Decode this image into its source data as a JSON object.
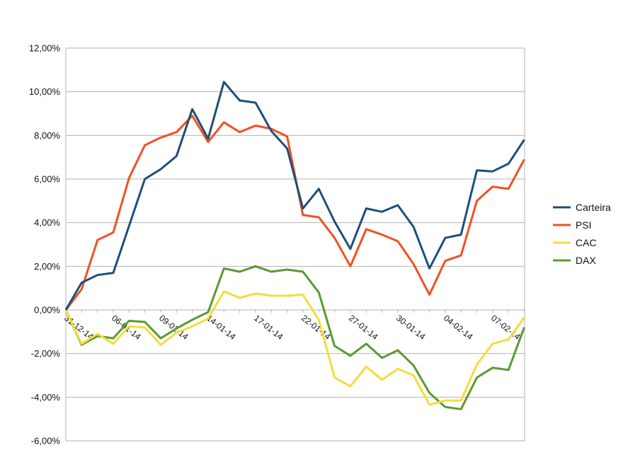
{
  "chart_data": {
    "type": "line",
    "title": "",
    "xlabel": "",
    "ylabel": "",
    "ylim": [
      -6,
      12
    ],
    "y_ticks": [
      "12,00%",
      "10,00%",
      "8,00%",
      "6,00%",
      "4,00%",
      "2,00%",
      "0,00%",
      "-2,00%",
      "-4,00%",
      "-6,00%"
    ],
    "x_tick_labels": [
      {
        "index": 0,
        "label": "31-12-14"
      },
      {
        "index": 3,
        "label": "06-01-14"
      },
      {
        "index": 6,
        "label": "09-01-14"
      },
      {
        "index": 9,
        "label": "14-01-14"
      },
      {
        "index": 12,
        "label": "17-01-14"
      },
      {
        "index": 15,
        "label": "22-01-14"
      },
      {
        "index": 18,
        "label": "27-01-14"
      },
      {
        "index": 21,
        "label": "30-01-14"
      },
      {
        "index": 24,
        "label": "04-02-14"
      },
      {
        "index": 27,
        "label": "07-02-14"
      }
    ],
    "grid": true,
    "legend_position": "right",
    "series": [
      {
        "name": "Carteira",
        "color": "#1f4e79",
        "values": [
          0.0,
          1.25,
          1.6,
          1.7,
          3.85,
          6.0,
          6.45,
          7.05,
          9.2,
          7.85,
          10.45,
          9.6,
          9.5,
          8.2,
          7.4,
          4.65,
          5.55,
          4.05,
          2.8,
          4.65,
          4.5,
          4.8,
          3.8,
          1.9,
          3.3,
          3.45,
          6.4,
          6.35,
          6.7,
          7.8
        ]
      },
      {
        "name": "PSI",
        "color": "#f25022",
        "values": [
          0.0,
          0.95,
          3.2,
          3.55,
          6.05,
          7.55,
          7.9,
          8.15,
          8.9,
          7.7,
          8.6,
          8.15,
          8.45,
          8.3,
          7.95,
          4.35,
          4.25,
          3.3,
          2.0,
          3.7,
          3.45,
          3.15,
          2.1,
          0.7,
          2.25,
          2.5,
          5.0,
          5.65,
          5.55,
          6.9
        ]
      },
      {
        "name": "CAC",
        "color": "#f5dc3c",
        "values": [
          0.0,
          -1.55,
          -1.1,
          -1.55,
          -0.75,
          -0.8,
          -1.6,
          -1.05,
          -0.75,
          -0.4,
          0.85,
          0.55,
          0.75,
          0.65,
          0.65,
          0.7,
          -0.45,
          -3.1,
          -3.5,
          -2.6,
          -3.2,
          -2.7,
          -3.0,
          -4.35,
          -4.15,
          -4.15,
          -2.5,
          -1.55,
          -1.35,
          -0.35
        ]
      },
      {
        "name": "DAX",
        "color": "#5a9a32",
        "values": [
          0.0,
          -1.6,
          -1.2,
          -1.3,
          -0.5,
          -0.55,
          -1.3,
          -0.85,
          -0.45,
          -0.1,
          1.9,
          1.75,
          2.0,
          1.75,
          1.85,
          1.75,
          0.8,
          -1.65,
          -2.1,
          -1.55,
          -2.2,
          -1.85,
          -2.55,
          -3.8,
          -4.45,
          -4.55,
          -3.1,
          -2.65,
          -2.75,
          -0.8
        ]
      }
    ]
  }
}
